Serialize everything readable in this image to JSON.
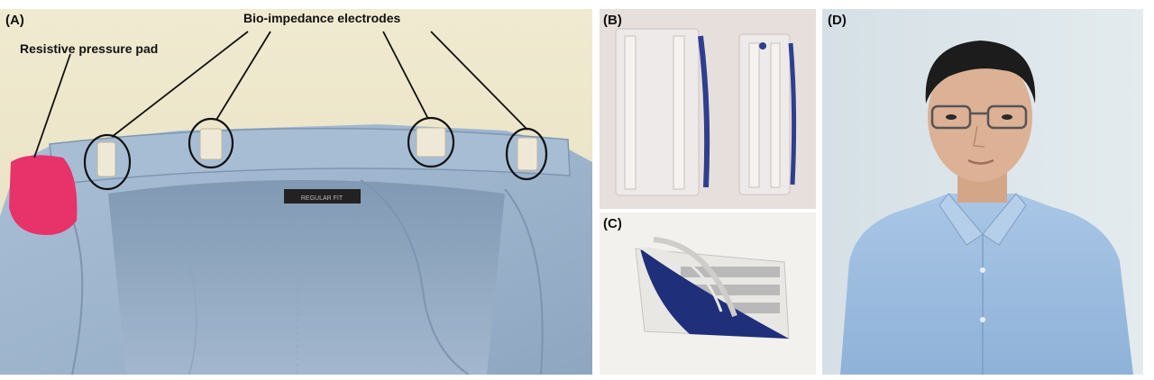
{
  "figure": {
    "panels": [
      {
        "label": "(A)"
      },
      {
        "label": "(B)"
      },
      {
        "label": "(C)"
      },
      {
        "label": "(D)"
      }
    ],
    "annotations": {
      "pressure_pad": "Resistive pressure pad",
      "electrodes": "Bio-impedance electrodes"
    },
    "shirt_tag_text": "REGULAR FIT"
  },
  "colors": {
    "shirt_blue": "#9fb6cf",
    "shirt_shadow": "#7f97b2",
    "backdrop": "#eae3c6",
    "pad_pink": "#e8326a",
    "electrode": "#efe8d6",
    "bg_panel_b": "#e7dfdc",
    "bg_panel_d": "#d9e4ea",
    "skin": "#d9ad8e",
    "hair": "#1c1c1c"
  }
}
